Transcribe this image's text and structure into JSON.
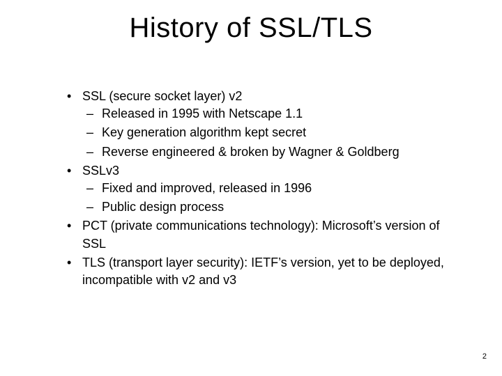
{
  "title": "History of SSL/TLS",
  "bullets": {
    "b0": "SSL (secure socket layer) v2",
    "b0s0": "Released in 1995 with Netscape 1.1",
    "b0s1": "Key generation algorithm kept secret",
    "b0s2": "Reverse engineered & broken by Wagner & Goldberg",
    "b1": "SSLv3",
    "b1s0": "Fixed and improved, released in 1996",
    "b1s1": "Public design process",
    "b2": "PCT (private communications technology): Microsoft’s version of SSL",
    "b3": "TLS (transport layer security): IETF’s version, yet to be deployed, incompatible with v2 and v3"
  },
  "page_number": "2",
  "colors": {
    "background": "#ffffff",
    "text": "#000000"
  },
  "typography": {
    "title_fontsize": 40,
    "body_fontsize": 18,
    "font_family": "Arial"
  }
}
